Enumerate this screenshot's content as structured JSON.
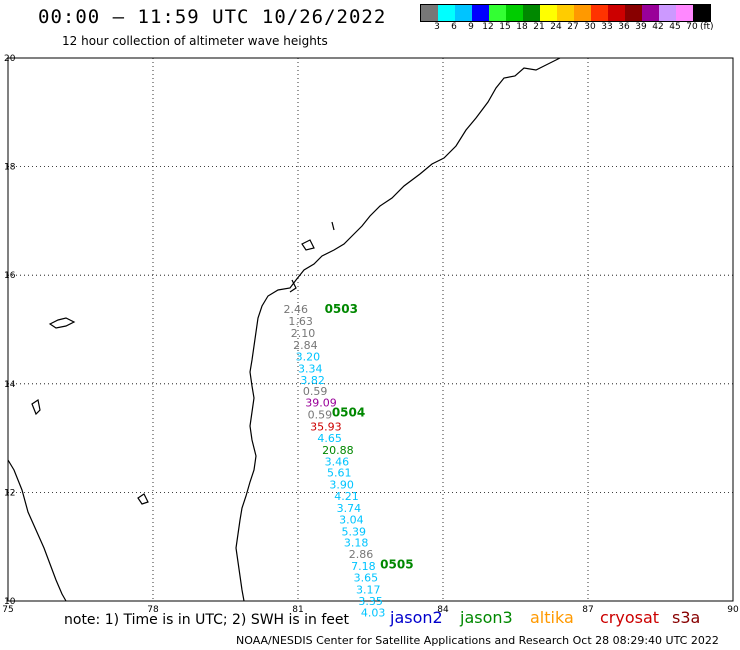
{
  "header": {
    "title": "00:00 – 11:59 UTC 10/26/2022",
    "subtitle": "12 hour collection of altimeter wave heights"
  },
  "colorbar": {
    "colors": [
      "#777777",
      "#00ffff",
      "#00c4ff",
      "#0000ff",
      "#33ff33",
      "#00cc00",
      "#008800",
      "#ffff00",
      "#ffcc00",
      "#ff9900",
      "#ff3300",
      "#cc0000",
      "#880000",
      "#990099",
      "#cc99ff",
      "#ff88ff",
      "#000000"
    ],
    "labels": [
      "3",
      "6",
      "9",
      "12",
      "15",
      "18",
      "21",
      "24",
      "27",
      "30",
      "33",
      "36",
      "39",
      "42",
      "45",
      "70"
    ],
    "unit": "(ft)"
  },
  "axes": {
    "lon_ticks": [
      "75",
      "78",
      "81",
      "84",
      "87",
      "90"
    ],
    "lat_ticks": [
      "20",
      "18",
      "16",
      "14",
      "12",
      "10"
    ]
  },
  "chart_data": {
    "type": "scatter",
    "xlim": [
      75,
      90
    ],
    "ylim": [
      10,
      20
    ],
    "grid": true,
    "points": [
      {
        "lon": 80.7,
        "lat": 15.3,
        "label": "2.46",
        "color": "#777777"
      },
      {
        "lon": 80.8,
        "lat": 15.08,
        "label": "1.63",
        "color": "#777777"
      },
      {
        "lon": 80.85,
        "lat": 14.86,
        "label": "2.10",
        "color": "#777777"
      },
      {
        "lon": 80.9,
        "lat": 14.64,
        "label": "2.84",
        "color": "#777777"
      },
      {
        "lon": 80.95,
        "lat": 14.43,
        "label": "3.20",
        "color": "#00c4ff"
      },
      {
        "lon": 81.0,
        "lat": 14.21,
        "label": "3.34",
        "color": "#00c4ff"
      },
      {
        "lon": 81.05,
        "lat": 14.0,
        "label": "3.82",
        "color": "#00c4ff"
      },
      {
        "lon": 81.1,
        "lat": 13.79,
        "label": "0.59",
        "color": "#777777"
      },
      {
        "lon": 81.15,
        "lat": 13.58,
        "label": "39.09",
        "color": "#990099"
      },
      {
        "lon": 81.2,
        "lat": 13.36,
        "label": "0.59",
        "color": "#777777"
      },
      {
        "lon": 81.25,
        "lat": 13.14,
        "label": "35.93",
        "color": "#cc0000"
      },
      {
        "lon": 81.4,
        "lat": 12.93,
        "label": "4.65",
        "color": "#00c4ff"
      },
      {
        "lon": 81.5,
        "lat": 12.71,
        "label": "20.88",
        "color": "#008800"
      },
      {
        "lon": 81.55,
        "lat": 12.5,
        "label": "3.46",
        "color": "#00c4ff"
      },
      {
        "lon": 81.6,
        "lat": 12.29,
        "label": "5.61",
        "color": "#00c4ff"
      },
      {
        "lon": 81.65,
        "lat": 12.07,
        "label": "3.90",
        "color": "#00c4ff"
      },
      {
        "lon": 81.75,
        "lat": 11.86,
        "label": "4.21",
        "color": "#00c4ff"
      },
      {
        "lon": 81.8,
        "lat": 11.64,
        "label": "3.74",
        "color": "#00c4ff"
      },
      {
        "lon": 81.85,
        "lat": 11.43,
        "label": "3.04",
        "color": "#00c4ff"
      },
      {
        "lon": 81.9,
        "lat": 11.21,
        "label": "5.39",
        "color": "#00c4ff"
      },
      {
        "lon": 81.95,
        "lat": 11.0,
        "label": "3.18",
        "color": "#00c4ff"
      },
      {
        "lon": 82.05,
        "lat": 10.79,
        "label": "2.86",
        "color": "#777777"
      },
      {
        "lon": 82.1,
        "lat": 10.57,
        "label": "7.18",
        "color": "#00c4ff"
      },
      {
        "lon": 82.15,
        "lat": 10.36,
        "label": "3.65",
        "color": "#00c4ff"
      },
      {
        "lon": 82.2,
        "lat": 10.14,
        "label": "3.17",
        "color": "#00c4ff"
      },
      {
        "lon": 82.25,
        "lat": 9.93,
        "label": "3.35",
        "color": "#00c4ff"
      },
      {
        "lon": 82.3,
        "lat": 9.71,
        "label": "4.03",
        "color": "#00c4ff"
      }
    ],
    "time_labels": [
      {
        "lon": 81.55,
        "lat": 15.3,
        "label": "0503",
        "color": "#008800"
      },
      {
        "lon": 81.7,
        "lat": 13.4,
        "label": "0504",
        "color": "#008800"
      },
      {
        "lon": 82.7,
        "lat": 10.6,
        "label": "0505",
        "color": "#008800"
      }
    ]
  },
  "legend": {
    "note": "note: 1) Time is in UTC; 2) SWH is in feet",
    "satellites": [
      {
        "name": "jason2",
        "color": "#0000cc"
      },
      {
        "name": "jason3",
        "color": "#008800"
      },
      {
        "name": "altika",
        "color": "#ff9900"
      },
      {
        "name": "cryosat",
        "color": "#cc0000"
      },
      {
        "name": "s3a",
        "color": "#880000"
      }
    ]
  },
  "footer": {
    "credit": "NOAA/NESDIS Center for Satellite Applications and Research    Oct 28 08:29:40 UTC 2022"
  }
}
